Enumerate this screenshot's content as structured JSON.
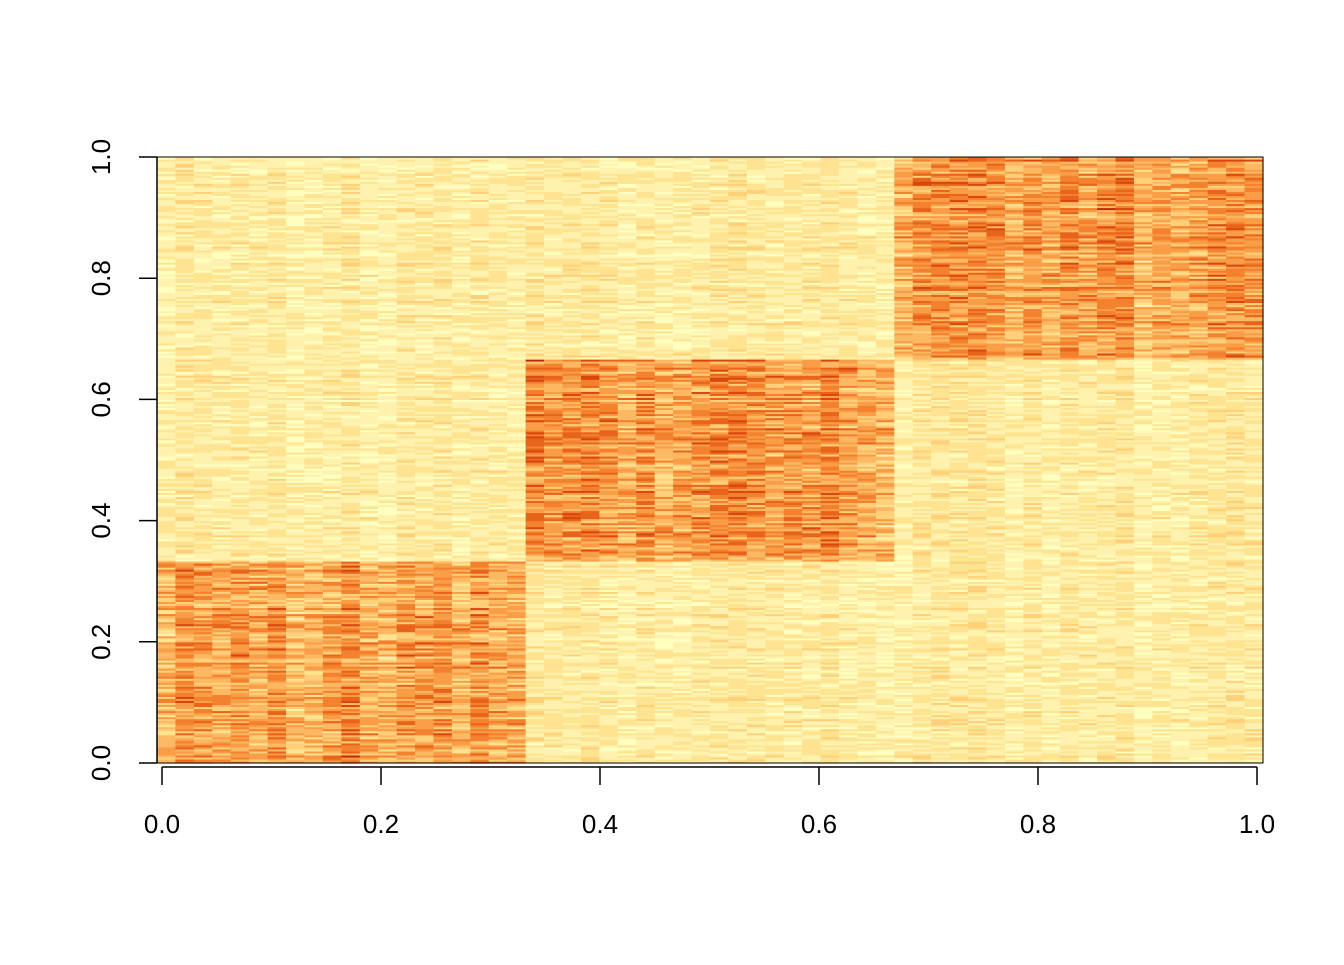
{
  "chart_data": {
    "type": "heatmap",
    "title": "",
    "xlabel": "",
    "ylabel": "",
    "xlim": [
      0,
      1
    ],
    "ylim": [
      0,
      1
    ],
    "x_ticks": [
      0.0,
      0.2,
      0.4,
      0.6,
      0.8,
      1.0
    ],
    "x_tick_labels": [
      "0.0",
      "0.2",
      "0.4",
      "0.6",
      "0.8",
      "1.0"
    ],
    "y_ticks": [
      0.0,
      0.2,
      0.4,
      0.6,
      0.8,
      1.0
    ],
    "y_tick_labels": [
      "0.0",
      "0.2",
      "0.4",
      "0.6",
      "0.8",
      "1.0"
    ],
    "grid": false,
    "legend": "none",
    "n_columns": 60,
    "n_rows": 300,
    "color_scale": [
      "#FFFFBF",
      "#FFF2AE",
      "#FEE391",
      "#FED07A",
      "#FDB863",
      "#F99D47",
      "#F3812E",
      "#E8641B",
      "#D8470D",
      "#C02A06",
      "#A61A02"
    ],
    "blocks": [
      {
        "x": [
          0.0,
          0.3333
        ],
        "y": [
          0.0,
          0.3333
        ],
        "intensity": "high"
      },
      {
        "x": [
          0.3333,
          0.6667
        ],
        "y": [
          0.3333,
          0.6667
        ],
        "intensity": "high"
      },
      {
        "x": [
          0.6667,
          1.0
        ],
        "y": [
          0.6667,
          1.0
        ],
        "intensity": "high"
      },
      {
        "x": [
          0.0,
          1.0
        ],
        "y": [
          0.0,
          1.0
        ],
        "intensity": "low",
        "note": "background"
      }
    ]
  }
}
